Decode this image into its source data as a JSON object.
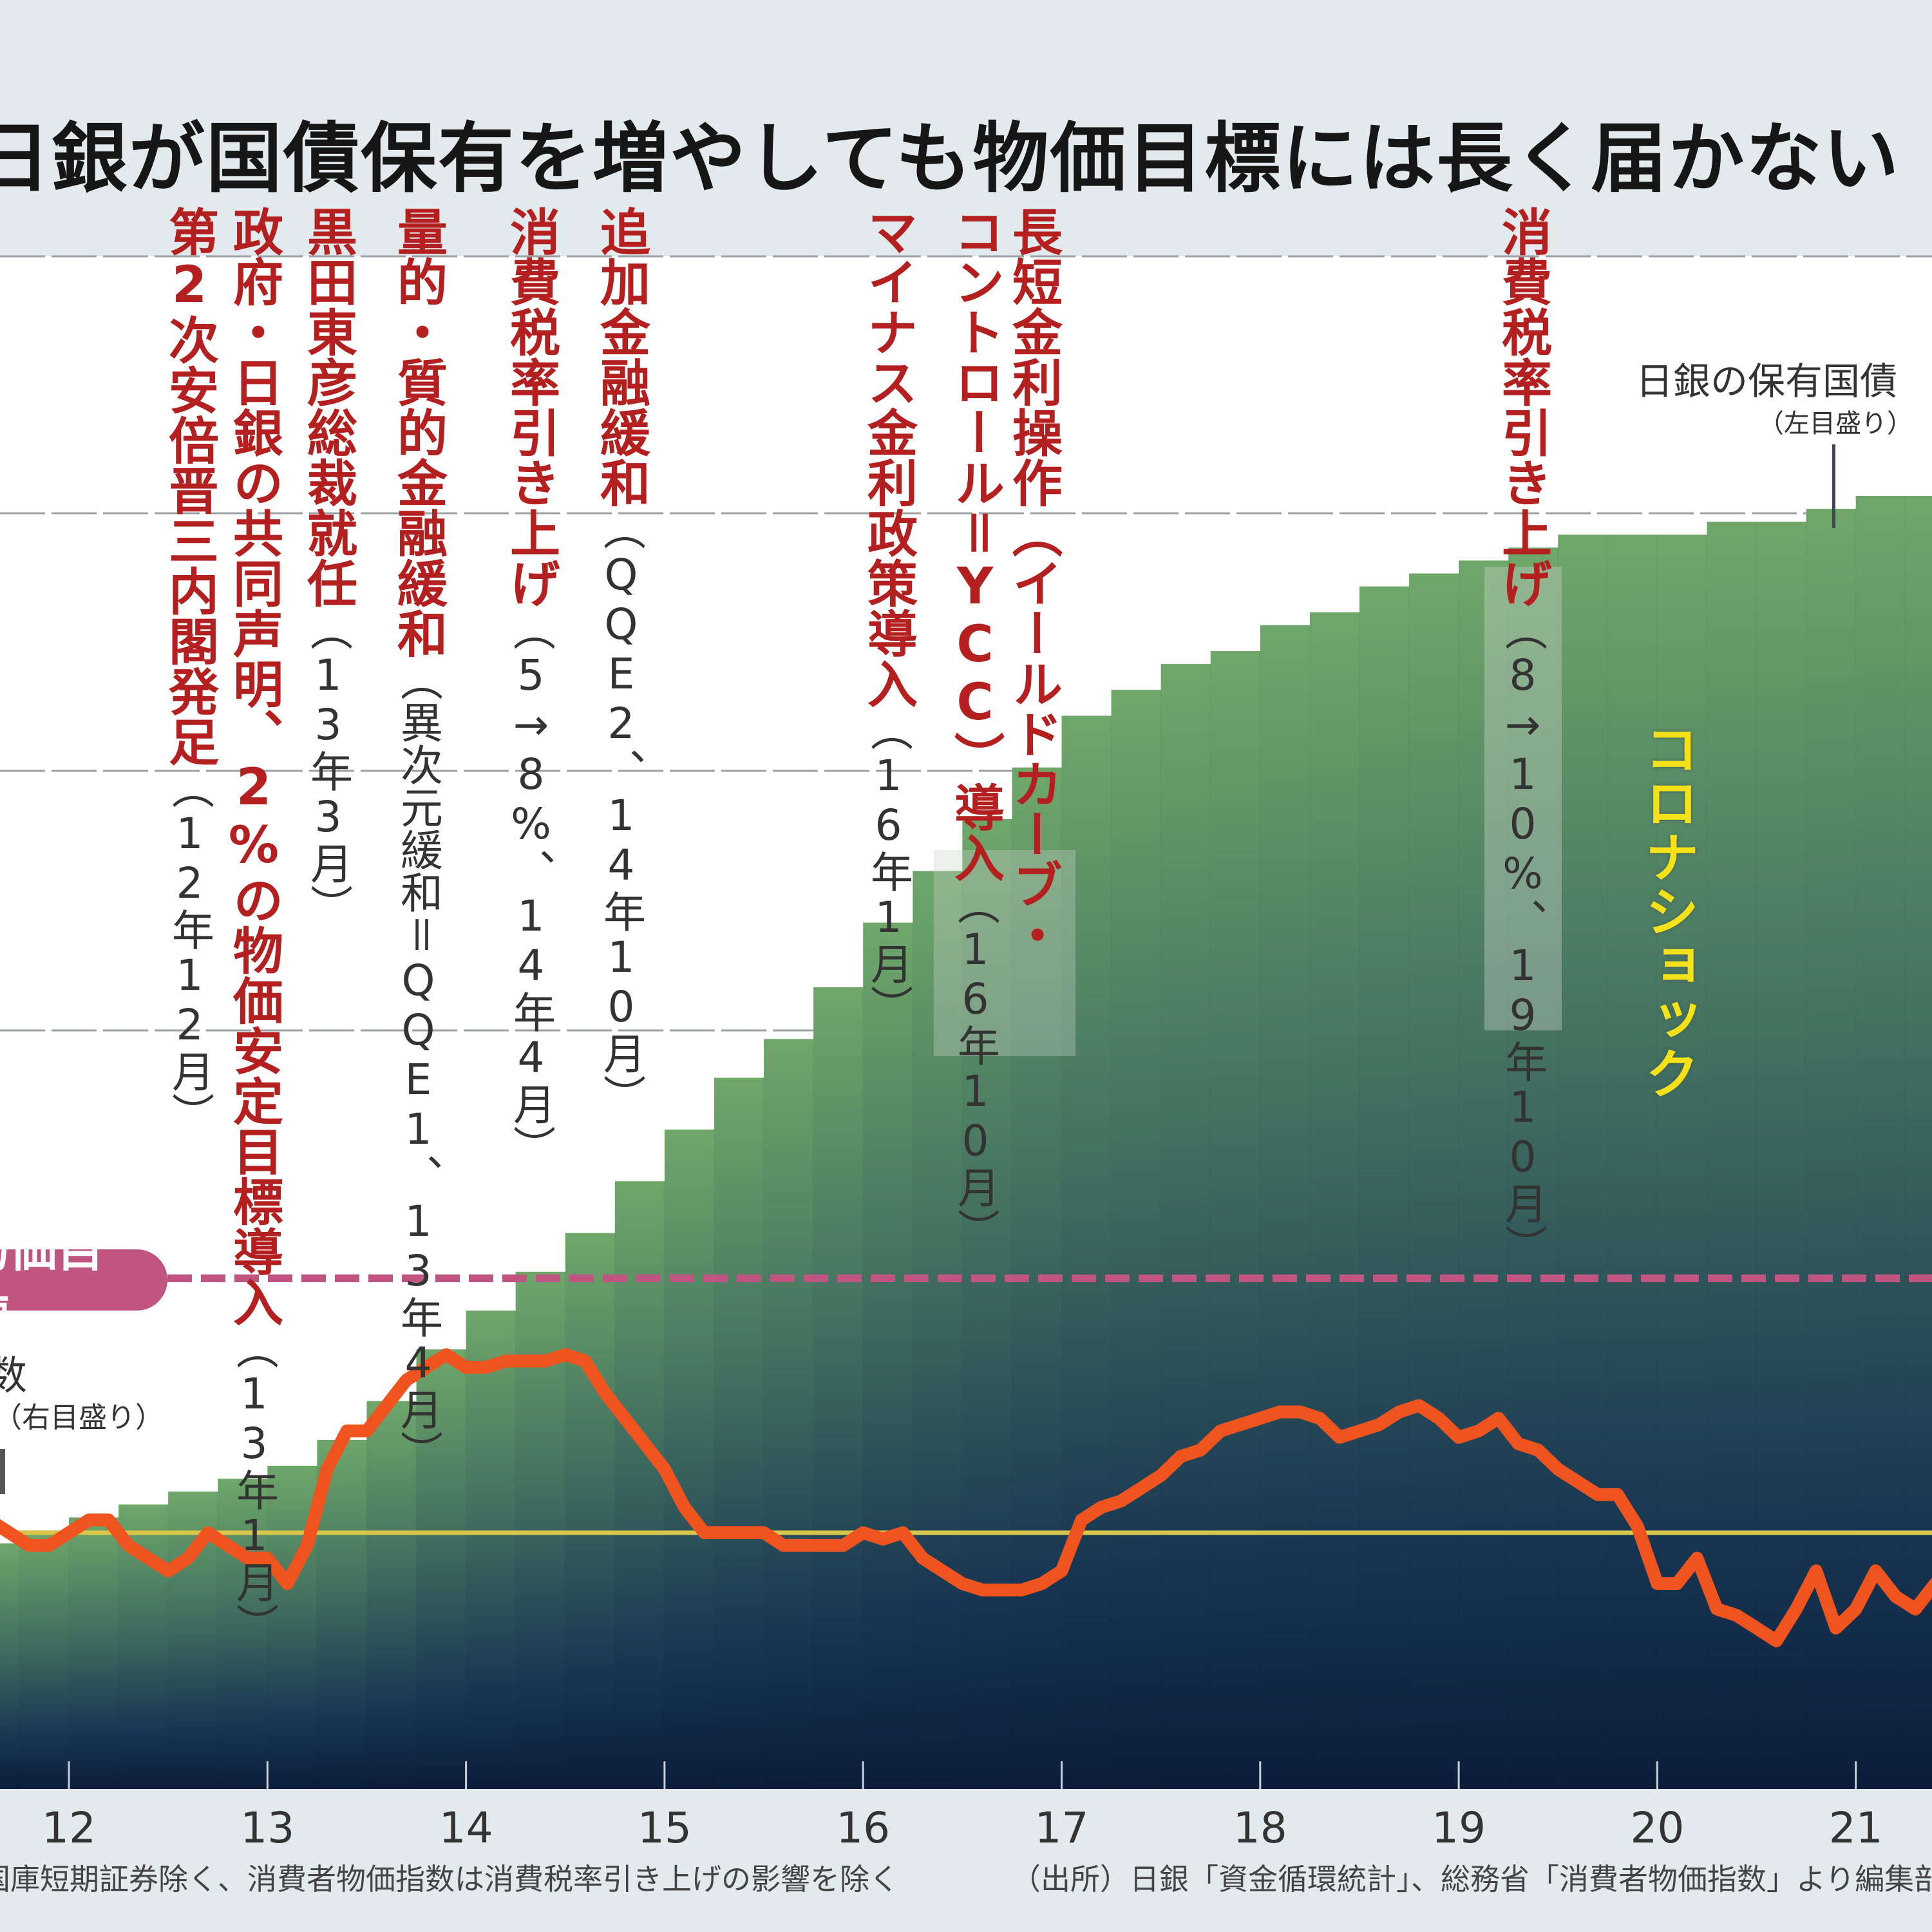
{
  "title": "日銀が国債保有を増やしても物価目標には長く届かない",
  "footnote_left": "国庫短期証券除く、消費者物価指数は消費税率引き上げの影響を除く",
  "footnote_right": "（出所）日銀「資金循環統計」、総務省「消費者物価指数」より編集部",
  "price_target_label": "物価目標",
  "cpi_legend": {
    "name": "消費者物価指数",
    "visible_fragment": "数",
    "scale": "（右目盛り）"
  },
  "boj_legend": {
    "name": "日銀の保有国債",
    "scale": "（左目盛り）"
  },
  "corona_label": "コロナショック",
  "events": [
    {
      "main": "第2次安倍晋三内閣発足",
      "date": "（12年12月）"
    },
    {
      "main": "政府・日銀の共同声明、2%の物価安定目標導入",
      "date": "（13年1月）"
    },
    {
      "main": "黒田東彦総裁就任",
      "date": "（13年3月）"
    },
    {
      "main": "量的・質的金融緩和",
      "date": "（異次元緩和＝QQE1、13年4月）"
    },
    {
      "main": "消費税率引き上げ",
      "date": "（5→8%、14年4月）"
    },
    {
      "main": "追加金融緩和",
      "date": "（QQE2、14年10月）"
    },
    {
      "main": "マイナス金利政策導入",
      "date": "（16年1月）"
    },
    {
      "main": "長短金利操作（イールドカーブ・",
      "main2": "コントロール＝YCC）導入",
      "date": "（16年10月）"
    },
    {
      "main": "消費税率引き上げ",
      "date": "（8→10%、19年10月）"
    }
  ],
  "colors": {
    "cpi_line": "#f0541e",
    "target_line": "#c05582",
    "zero_line": "#d8c64a",
    "event_text": "#b3201f",
    "bar_top": "#6fa76a",
    "bar_bottom": "#0b1d3a",
    "corona": "#f4e11a"
  },
  "chart_data": {
    "type": "bar+line",
    "title": "日銀が国債保有を増やしても物価目標には長く届かない",
    "xlabel": "",
    "x_ticks": [
      "12",
      "13",
      "14",
      "15",
      "16",
      "17",
      "18",
      "19",
      "20",
      "21"
    ],
    "x_range": [
      2011.6,
      2021.8
    ],
    "grid": true,
    "legend": "inline",
    "series": [
      {
        "name": "日銀の保有国債",
        "axis": "left",
        "kind": "step-bar",
        "unit": "fraction of left-axis range (axis labels cropped)",
        "x": [
          2011.625,
          2011.875,
          2012.125,
          2012.375,
          2012.625,
          2012.875,
          2013.125,
          2013.375,
          2013.625,
          2013.875,
          2014.125,
          2014.375,
          2014.625,
          2014.875,
          2015.125,
          2015.375,
          2015.625,
          2015.875,
          2016.125,
          2016.375,
          2016.625,
          2016.875,
          2017.125,
          2017.375,
          2017.625,
          2017.875,
          2018.125,
          2018.375,
          2018.625,
          2018.875,
          2019.125,
          2019.375,
          2019.625,
          2019.875,
          2020.125,
          2020.375,
          2020.625,
          2020.875,
          2021.125,
          2021.375,
          2021.625
        ],
        "values": [
          0.19,
          0.2,
          0.21,
          0.22,
          0.23,
          0.24,
          0.25,
          0.27,
          0.3,
          0.34,
          0.37,
          0.4,
          0.43,
          0.47,
          0.51,
          0.55,
          0.58,
          0.62,
          0.67,
          0.71,
          0.75,
          0.79,
          0.83,
          0.85,
          0.87,
          0.88,
          0.9,
          0.91,
          0.93,
          0.94,
          0.95,
          0.96,
          0.97,
          0.97,
          0.97,
          0.98,
          0.98,
          0.99,
          1.0,
          1.0,
          1.01
        ]
      },
      {
        "name": "消費者物価指数",
        "axis": "right",
        "kind": "line",
        "unit": "% (前年比)",
        "x": [
          2011.6,
          2011.7,
          2011.8,
          2011.9,
          2012.0,
          2012.1,
          2012.2,
          2012.3,
          2012.4,
          2012.5,
          2012.6,
          2012.7,
          2012.8,
          2012.9,
          2013.0,
          2013.1,
          2013.2,
          2013.3,
          2013.4,
          2013.5,
          2013.6,
          2013.7,
          2013.8,
          2013.9,
          2014.0,
          2014.1,
          2014.2,
          2014.3,
          2014.4,
          2014.5,
          2014.6,
          2014.7,
          2014.8,
          2014.9,
          2015.0,
          2015.1,
          2015.2,
          2015.3,
          2015.4,
          2015.5,
          2015.6,
          2015.7,
          2015.8,
          2015.9,
          2016.0,
          2016.1,
          2016.2,
          2016.3,
          2016.4,
          2016.5,
          2016.6,
          2016.7,
          2016.8,
          2016.9,
          2017.0,
          2017.1,
          2017.2,
          2017.3,
          2017.4,
          2017.5,
          2017.6,
          2017.7,
          2017.8,
          2017.9,
          2018.0,
          2018.1,
          2018.2,
          2018.3,
          2018.4,
          2018.5,
          2018.6,
          2018.7,
          2018.8,
          2018.9,
          2019.0,
          2019.1,
          2019.2,
          2019.3,
          2019.4,
          2019.5,
          2019.6,
          2019.7,
          2019.8,
          2019.9,
          2020.0,
          2020.1,
          2020.2,
          2020.3,
          2020.4,
          2020.5,
          2020.6,
          2020.7,
          2020.8,
          2020.9,
          2021.0,
          2021.1,
          2021.2,
          2021.3,
          2021.4,
          2021.5,
          2021.6,
          2021.7,
          2021.8
        ],
        "values": [
          0.1,
          0.0,
          -0.1,
          -0.1,
          0.0,
          0.1,
          0.1,
          -0.1,
          -0.2,
          -0.3,
          -0.2,
          0.0,
          -0.1,
          -0.2,
          -0.2,
          -0.4,
          -0.1,
          0.5,
          0.8,
          0.8,
          1.0,
          1.2,
          1.3,
          1.4,
          1.3,
          1.3,
          1.35,
          1.35,
          1.35,
          1.4,
          1.35,
          1.1,
          0.9,
          0.7,
          0.5,
          0.2,
          0.0,
          0.0,
          0.0,
          0.0,
          -0.1,
          -0.1,
          -0.1,
          -0.1,
          0.0,
          -0.05,
          0.0,
          -0.2,
          -0.3,
          -0.4,
          -0.45,
          -0.45,
          -0.45,
          -0.4,
          -0.3,
          0.1,
          0.2,
          0.25,
          0.35,
          0.45,
          0.6,
          0.65,
          0.8,
          0.85,
          0.9,
          0.95,
          0.95,
          0.9,
          0.75,
          0.8,
          0.85,
          0.95,
          1.0,
          0.9,
          0.75,
          0.8,
          0.9,
          0.7,
          0.65,
          0.5,
          0.4,
          0.3,
          0.3,
          0.05,
          -0.4,
          -0.4,
          -0.2,
          -0.6,
          -0.65,
          -0.75,
          -0.85,
          -0.6,
          -0.3,
          -0.75,
          -0.6,
          -0.3,
          -0.5,
          -0.6,
          -0.4,
          -0.3,
          -0.2,
          -0.2,
          -0.1
        ]
      },
      {
        "name": "物価目標",
        "axis": "right",
        "kind": "hline",
        "value": 2
      },
      {
        "name": "ゼロ線",
        "axis": "right",
        "kind": "hline",
        "value": 0
      }
    ]
  }
}
